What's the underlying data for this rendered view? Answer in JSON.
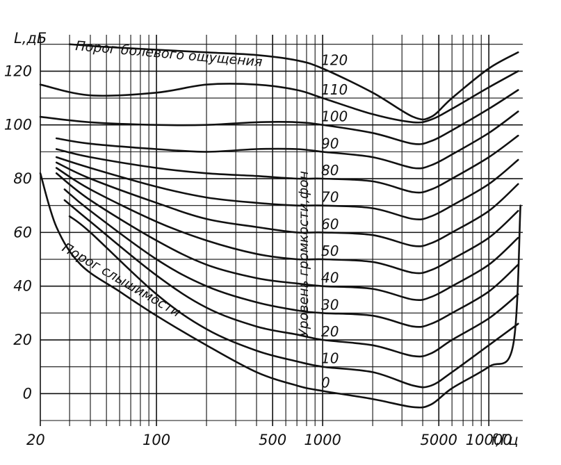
{
  "chart_data": {
    "type": "line",
    "title": "",
    "xlabel": "f,Гц",
    "ylabel": "L,дБ",
    "x_scale": "log",
    "xlim": [
      20,
      16000
    ],
    "ylim": [
      -10,
      132
    ],
    "grid": true,
    "x_ticks": [
      {
        "value": 20,
        "label": "20"
      },
      {
        "value": 100,
        "label": "100"
      },
      {
        "value": 500,
        "label": "500"
      },
      {
        "value": 1000,
        "label": "1000"
      },
      {
        "value": 5000,
        "label": "5000"
      },
      {
        "value": 10000,
        "label": "10000"
      }
    ],
    "y_ticks": [
      {
        "value": 0,
        "label": "0"
      },
      {
        "value": 20,
        "label": "20"
      },
      {
        "value": 40,
        "label": "40"
      },
      {
        "value": 60,
        "label": "60"
      },
      {
        "value": 80,
        "label": "80"
      },
      {
        "value": 100,
        "label": "100"
      },
      {
        "value": 120,
        "label": "120"
      }
    ],
    "annotations": {
      "pain_threshold": "Порог болевого ощущения",
      "hearing_threshold": "Порог слышимости",
      "loudness_axis": "Уровень громкости,фон"
    },
    "series": [
      {
        "label": "120",
        "x": [
          30,
          50,
          100,
          200,
          400,
          700,
          1000,
          2000,
          3500,
          4500,
          6000,
          10000,
          15000
        ],
        "y": [
          130,
          129,
          128,
          127,
          126,
          124,
          121,
          112,
          103,
          103,
          110,
          121,
          127
        ]
      },
      {
        "label": "110",
        "x": [
          20,
          40,
          100,
          200,
          400,
          700,
          1000,
          2000,
          3500,
          4500,
          6000,
          10000,
          15000
        ],
        "y": [
          115,
          111,
          112,
          115,
          115,
          113,
          110,
          104,
          101,
          102,
          106,
          114,
          120
        ]
      },
      {
        "label": "100",
        "x": [
          20,
          40,
          100,
          200,
          400,
          700,
          1000,
          2000,
          3500,
          4500,
          6000,
          10000,
          15000
        ],
        "y": [
          103,
          101,
          100,
          100,
          101,
          101,
          100,
          97,
          93,
          94,
          98,
          106,
          113
        ]
      },
      {
        "label": "90",
        "x": [
          25,
          40,
          100,
          200,
          400,
          700,
          1000,
          2000,
          3500,
          4500,
          6000,
          10000,
          15000
        ],
        "y": [
          95,
          93,
          91,
          90,
          91,
          91,
          90,
          88,
          84,
          85,
          89,
          97,
          105
        ]
      },
      {
        "label": "80",
        "x": [
          25,
          40,
          100,
          200,
          400,
          700,
          1000,
          2000,
          3500,
          4500,
          6000,
          10000,
          15000
        ],
        "y": [
          91,
          88,
          84,
          82,
          81,
          80,
          80,
          79,
          75,
          76,
          80,
          88,
          96
        ]
      },
      {
        "label": "70",
        "x": [
          25,
          40,
          100,
          200,
          400,
          700,
          1000,
          2000,
          3500,
          4500,
          6000,
          10000,
          15000
        ],
        "y": [
          88,
          84,
          77,
          73,
          71,
          70,
          70,
          69,
          65,
          66,
          70,
          78,
          87
        ]
      },
      {
        "label": "60",
        "x": [
          25,
          40,
          100,
          200,
          400,
          700,
          1000,
          2000,
          3500,
          4500,
          6000,
          10000,
          15000
        ],
        "y": [
          86,
          80,
          71,
          65,
          62,
          60,
          60,
          59,
          55,
          56,
          60,
          68,
          78
        ]
      },
      {
        "label": "50",
        "x": [
          25,
          40,
          100,
          200,
          400,
          700,
          1000,
          2000,
          3500,
          4500,
          6000,
          10000,
          15000
        ],
        "y": [
          84,
          76,
          64,
          57,
          52,
          50,
          50,
          49,
          45,
          46,
          50,
          58,
          68
        ]
      },
      {
        "label": "40",
        "x": [
          25,
          40,
          100,
          200,
          400,
          700,
          1000,
          2000,
          3500,
          4500,
          6000,
          10000,
          15000
        ],
        "y": [
          82,
          72,
          57,
          48,
          43,
          41,
          40,
          39,
          35,
          36,
          40,
          48,
          58
        ]
      },
      {
        "label": "30",
        "x": [
          28,
          40,
          100,
          200,
          400,
          700,
          1000,
          2000,
          3500,
          4500,
          6000,
          10000,
          15000
        ],
        "y": [
          76,
          68,
          50,
          40,
          34,
          31,
          30,
          29,
          25,
          26,
          30,
          38,
          48
        ]
      },
      {
        "label": "20",
        "x": [
          28,
          40,
          100,
          200,
          400,
          700,
          1000,
          2000,
          3500,
          4500,
          6000,
          10000,
          15000
        ],
        "y": [
          72,
          64,
          44,
          32,
          25,
          22,
          20,
          18,
          14,
          15,
          20,
          28,
          37
        ]
      },
      {
        "label": "10",
        "x": [
          30,
          40,
          100,
          200,
          400,
          700,
          1000,
          2000,
          3500,
          4500,
          6000,
          10000,
          15000
        ],
        "y": [
          66,
          60,
          37,
          24,
          16,
          12,
          10,
          8,
          3,
          3,
          8,
          18,
          26
        ]
      },
      {
        "label": "0",
        "x": [
          20,
          25,
          35,
          60,
          100,
          200,
          400,
          700,
          1000,
          2000,
          3500,
          4500,
          6000,
          10000,
          14000,
          15500
        ],
        "y": [
          82,
          62,
          48,
          38,
          29,
          18,
          8,
          3,
          1,
          -2,
          -5,
          -4,
          2,
          10,
          18,
          70
        ]
      }
    ]
  }
}
